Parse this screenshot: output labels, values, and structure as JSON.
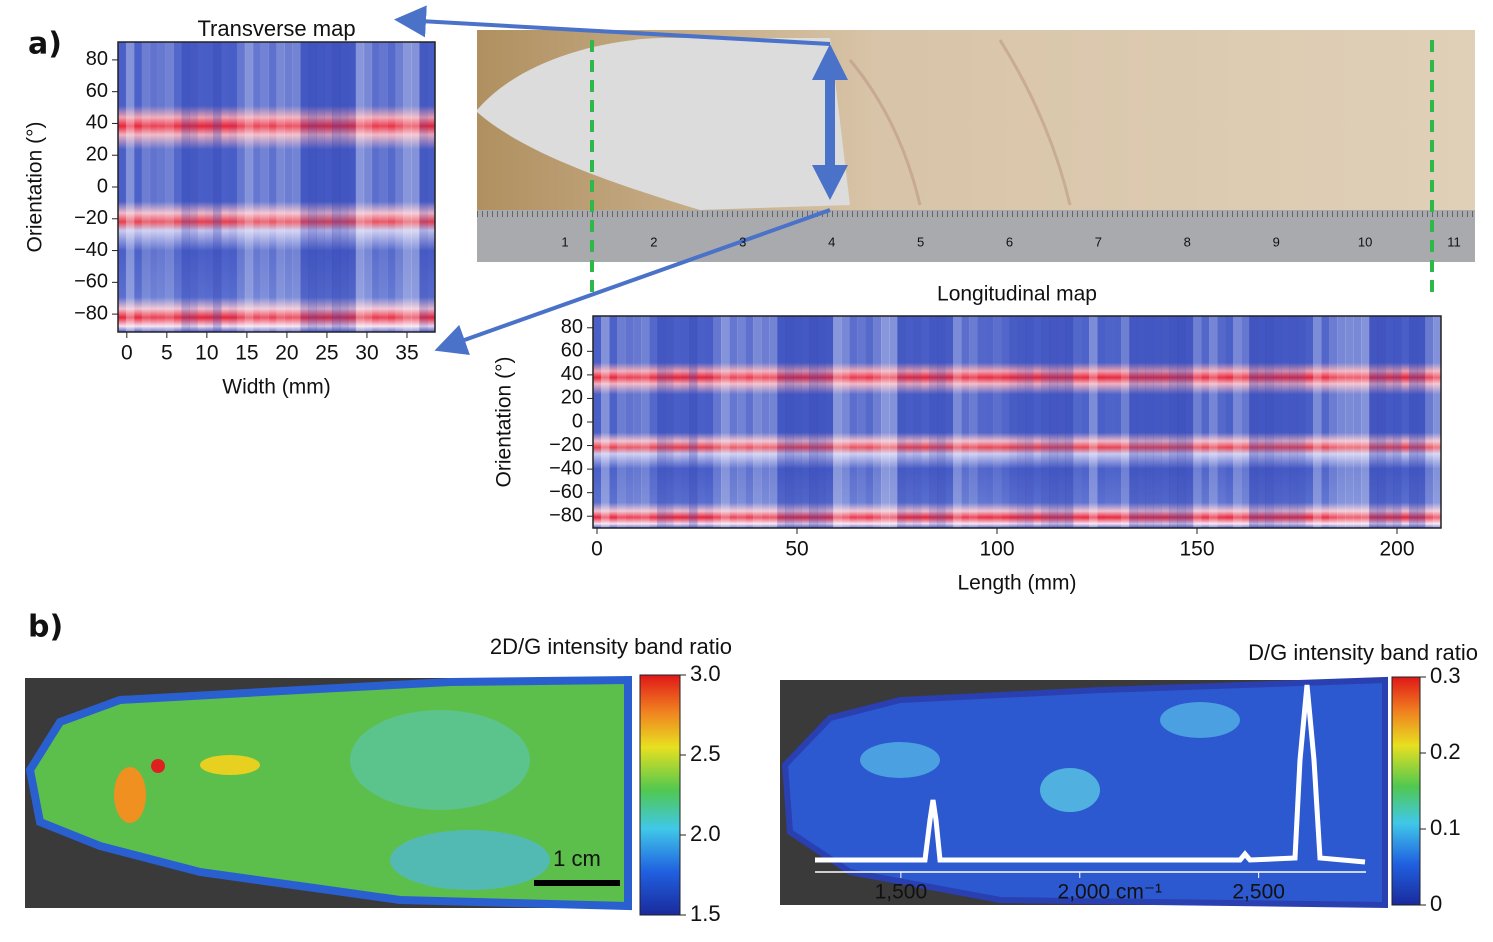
{
  "panels": {
    "a": "a)",
    "b": "b)"
  },
  "ruler_labels": [
    "1",
    "2",
    "3",
    "4",
    "5",
    "6",
    "7",
    "8",
    "9",
    "10",
    "11"
  ],
  "chart_data": [
    {
      "type": "heatmap",
      "title": "Transverse map",
      "xlabel": "Width (mm)",
      "ylabel": "Orientation (°)",
      "xlim": [
        -1.1,
        38.5
      ],
      "xticks": [
        0,
        5,
        10,
        15,
        20,
        25,
        30,
        35
      ],
      "ylim": [
        -90,
        90
      ],
      "yticks": [
        80,
        60,
        40,
        20,
        0,
        {
          "value": -20,
          "label": "−20"
        },
        {
          "value": -40,
          "label": "−40"
        },
        {
          "value": -60,
          "label": "−60"
        },
        {
          "value": -80,
          "label": "−80"
        }
      ]
    },
    {
      "type": "heatmap",
      "title": "Longitudinal map",
      "xlabel": "Length (mm)",
      "ylabel": "Orientation (°)",
      "xlim": [
        -1,
        211
      ],
      "xticks": [
        0,
        50,
        100,
        150,
        200
      ],
      "ylim": [
        -90,
        90
      ],
      "yticks": [
        80,
        60,
        40,
        20,
        0,
        {
          "value": -20,
          "label": "−20"
        },
        {
          "value": -40,
          "label": "−40"
        },
        {
          "value": -60,
          "label": "−60"
        },
        {
          "value": -80,
          "label": "−80"
        }
      ]
    },
    {
      "type": "colormap",
      "title": "2D/G intensity band ratio",
      "zlim": [
        1.5,
        3.0
      ],
      "zticks": [
        {
          "value": 3.0,
          "label": "3.0"
        },
        2.5,
        {
          "value": 2.0,
          "label": "2.0"
        },
        1.5
      ],
      "scale_bar": "1 cm"
    },
    {
      "type": "colormap",
      "title": "D/G intensity band ratio",
      "zlim": [
        0,
        0.3
      ],
      "zticks": [
        0.3,
        0.2,
        0.1,
        0
      ],
      "inset": {
        "type": "spectrum",
        "xlim": [
          1260,
          2800
        ],
        "xticks": [
          {
            "value": 1500,
            "label": "1,500"
          },
          {
            "value": 2000,
            "label": "2,000 cm⁻¹"
          },
          {
            "value": 2500,
            "label": "2,500"
          }
        ]
      }
    }
  ]
}
